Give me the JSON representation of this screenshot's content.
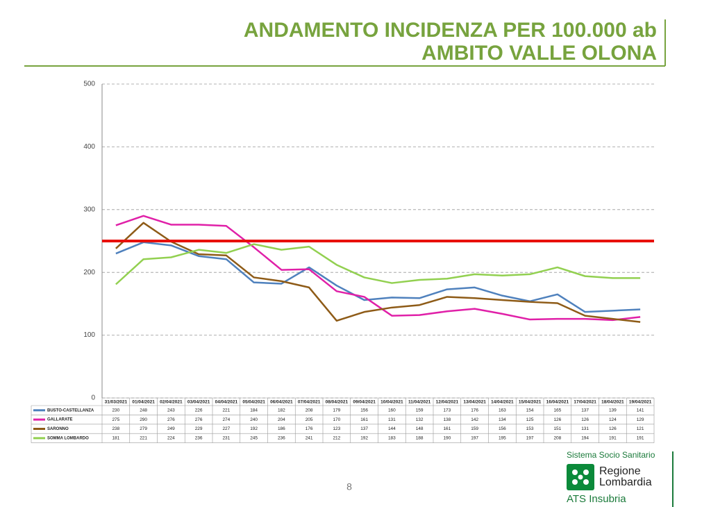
{
  "header": {
    "title_line1": "ANDAMENTO INCIDENZA PER 100.000 ab",
    "title_line2": "AMBITO VALLE OLONA"
  },
  "chart_data": {
    "type": "line",
    "categories": [
      "31/03/2021",
      "01/04/2021",
      "02/04/2021",
      "03/04/2021",
      "04/04/2021",
      "05/04/2021",
      "06/04/2021",
      "07/04/2021",
      "08/04/2021",
      "09/04/2021",
      "10/04/2021",
      "11/04/2021",
      "12/04/2021",
      "13/04/2021",
      "14/04/2021",
      "15/04/2021",
      "16/04/2021",
      "17/04/2021",
      "18/04/2021",
      "19/04/2021"
    ],
    "series": [
      {
        "name": "BUSTO-CASTELLANZA",
        "color": "#4f81bd",
        "values": [
          230,
          248,
          243,
          226,
          221,
          184,
          182,
          208,
          179,
          156,
          160,
          159,
          173,
          176,
          163,
          154,
          165,
          137,
          139,
          141
        ]
      },
      {
        "name": "GALLARATE",
        "color": "#e020a8",
        "values": [
          275,
          290,
          276,
          276,
          274,
          240,
          204,
          205,
          170,
          161,
          131,
          132,
          138,
          142,
          134,
          125,
          126,
          126,
          124,
          129
        ]
      },
      {
        "name": "SARONNO",
        "color": "#8e5b17",
        "values": [
          238,
          279,
          249,
          229,
          227,
          192,
          186,
          176,
          123,
          137,
          144,
          148,
          161,
          159,
          156,
          153,
          151,
          131,
          126,
          121
        ]
      },
      {
        "name": "SOMMA LOMBARDO",
        "color": "#92d050",
        "values": [
          181,
          221,
          224,
          236,
          231,
          245,
          236,
          241,
          212,
          192,
          183,
          188,
          190,
          197,
          195,
          197,
          208,
          194,
          191,
          191
        ]
      }
    ],
    "reference_line": {
      "value": 250,
      "color": "#e8100c"
    },
    "ylim": [
      0,
      500
    ],
    "yticks": [
      0,
      100,
      200,
      300,
      400,
      500
    ],
    "grid": true
  },
  "footer": {
    "page_number": "8",
    "logo_line1": "Sistema Socio Sanitario",
    "logo_line2": "Regione",
    "logo_line3": "Lombardia",
    "logo_line4": "ATS Insubria"
  }
}
